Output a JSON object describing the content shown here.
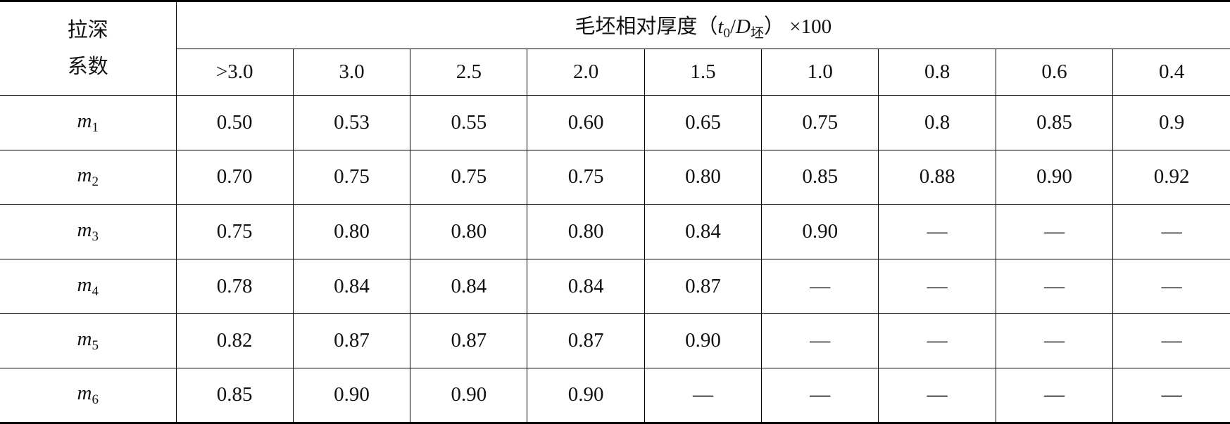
{
  "table": {
    "row_header": [
      "拉深",
      "系数"
    ],
    "group_header": {
      "prefix": "毛坯相对厚度（",
      "t": "t",
      "t_sub": "0",
      "slash": "/",
      "d": "D",
      "d_sub": "坯",
      "suffix": "） ×100"
    },
    "columns": [
      ">3.0",
      "3.0",
      "2.5",
      "2.0",
      "1.5",
      "1.0",
      "0.8",
      "0.6",
      "0.4"
    ],
    "rows": [
      {
        "label": "m",
        "sub": "1",
        "values": [
          "0.50",
          "0.53",
          "0.55",
          "0.60",
          "0.65",
          "0.75",
          "0.8",
          "0.85",
          "0.9"
        ]
      },
      {
        "label": "m",
        "sub": "2",
        "values": [
          "0.70",
          "0.75",
          "0.75",
          "0.75",
          "0.80",
          "0.85",
          "0.88",
          "0.90",
          "0.92"
        ]
      },
      {
        "label": "m",
        "sub": "3",
        "values": [
          "0.75",
          "0.80",
          "0.80",
          "0.80",
          "0.84",
          "0.90",
          "—",
          "—",
          "—"
        ]
      },
      {
        "label": "m",
        "sub": "4",
        "values": [
          "0.78",
          "0.84",
          "0.84",
          "0.84",
          "0.87",
          "—",
          "—",
          "—",
          "—"
        ]
      },
      {
        "label": "m",
        "sub": "5",
        "values": [
          "0.82",
          "0.87",
          "0.87",
          "0.87",
          "0.90",
          "—",
          "—",
          "—",
          "—"
        ]
      },
      {
        "label": "m",
        "sub": "6",
        "values": [
          "0.85",
          "0.90",
          "0.90",
          "0.90",
          "—",
          "—",
          "—",
          "—",
          "—"
        ]
      }
    ]
  }
}
